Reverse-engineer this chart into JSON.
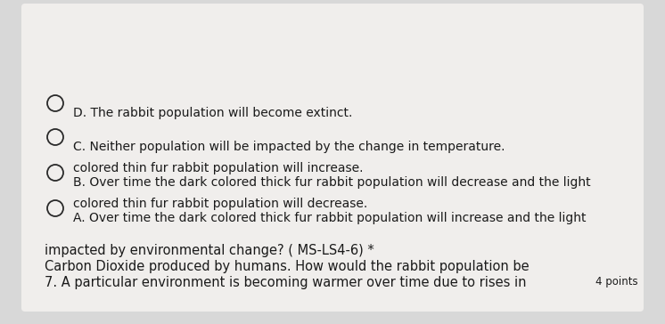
{
  "background_color": "#d8d8d8",
  "card_color": "#f0eeec",
  "question_line1": "7. A particular environment is becoming warmer over time due to rises in",
  "question_line2": "Carbon Dioxide produced by humans. How would the rabbit population be",
  "question_line3": "impacted by environmental change? ( MS-LS4-6) *",
  "points_label": "4 points",
  "options": [
    {
      "line1": "A. Over time the dark colored thick fur rabbit population will increase and the light",
      "line2": "colored thin fur rabbit population will decrease."
    },
    {
      "line1": "B. Over time the dark colored thick fur rabbit population will decrease and the light",
      "line2": "colored thin fur rabbit population will increase."
    },
    {
      "line1": "C. Neither population will be impacted by the change in temperature.",
      "line2": null
    },
    {
      "line1": "D. The rabbit population will become extinct.",
      "line2": null
    }
  ],
  "font_size_question": 10.5,
  "font_size_points": 8.5,
  "font_size_options": 10.0,
  "text_color": "#1a1a1a",
  "circle_edge_color": "#2a2a2a",
  "circle_size": 9
}
